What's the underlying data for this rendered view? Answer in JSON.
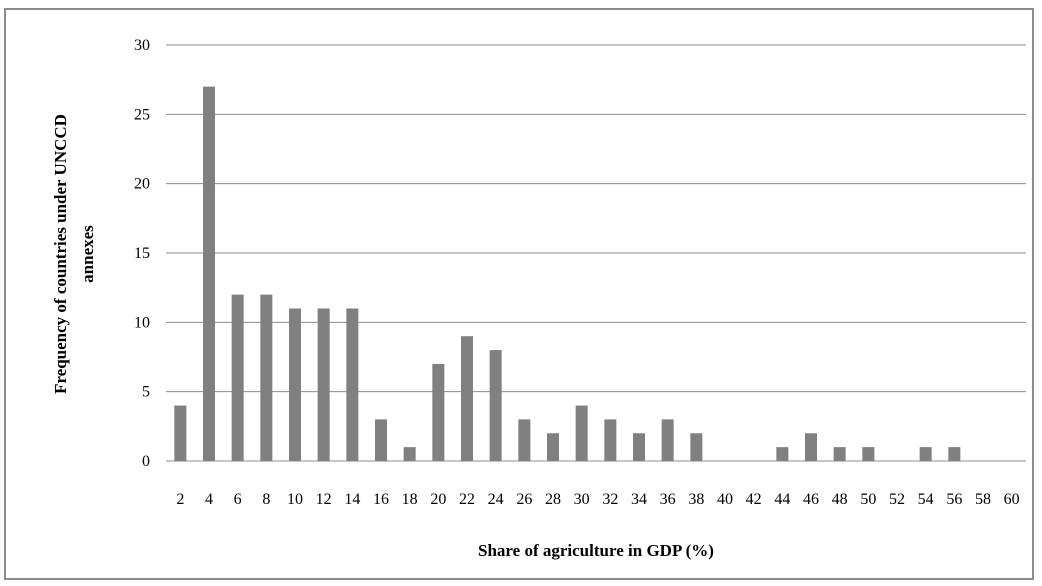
{
  "chart_data": {
    "type": "bar",
    "title": "",
    "xlabel": "Share of agriculture in GDP (%)",
    "ylabel_lines": [
      "Frequency of countries under UNCCD",
      "annexes"
    ],
    "categories": [
      "2",
      "4",
      "6",
      "8",
      "10",
      "12",
      "14",
      "16",
      "18",
      "20",
      "22",
      "24",
      "26",
      "28",
      "30",
      "32",
      "34",
      "36",
      "38",
      "40",
      "42",
      "44",
      "46",
      "48",
      "50",
      "52",
      "54",
      "56",
      "58",
      "60"
    ],
    "values": [
      4,
      27,
      12,
      12,
      11,
      11,
      11,
      3,
      1,
      7,
      9,
      8,
      3,
      2,
      4,
      3,
      2,
      3,
      2,
      0,
      0,
      1,
      2,
      1,
      1,
      0,
      1,
      1,
      0,
      0
    ],
    "ylim": [
      0,
      30
    ],
    "yticks": [
      "0",
      "5",
      "10",
      "15",
      "20",
      "25",
      "30"
    ],
    "grid": true,
    "legend": "none",
    "bar_color": "#808080",
    "grid_color": "#8c8c8c"
  }
}
